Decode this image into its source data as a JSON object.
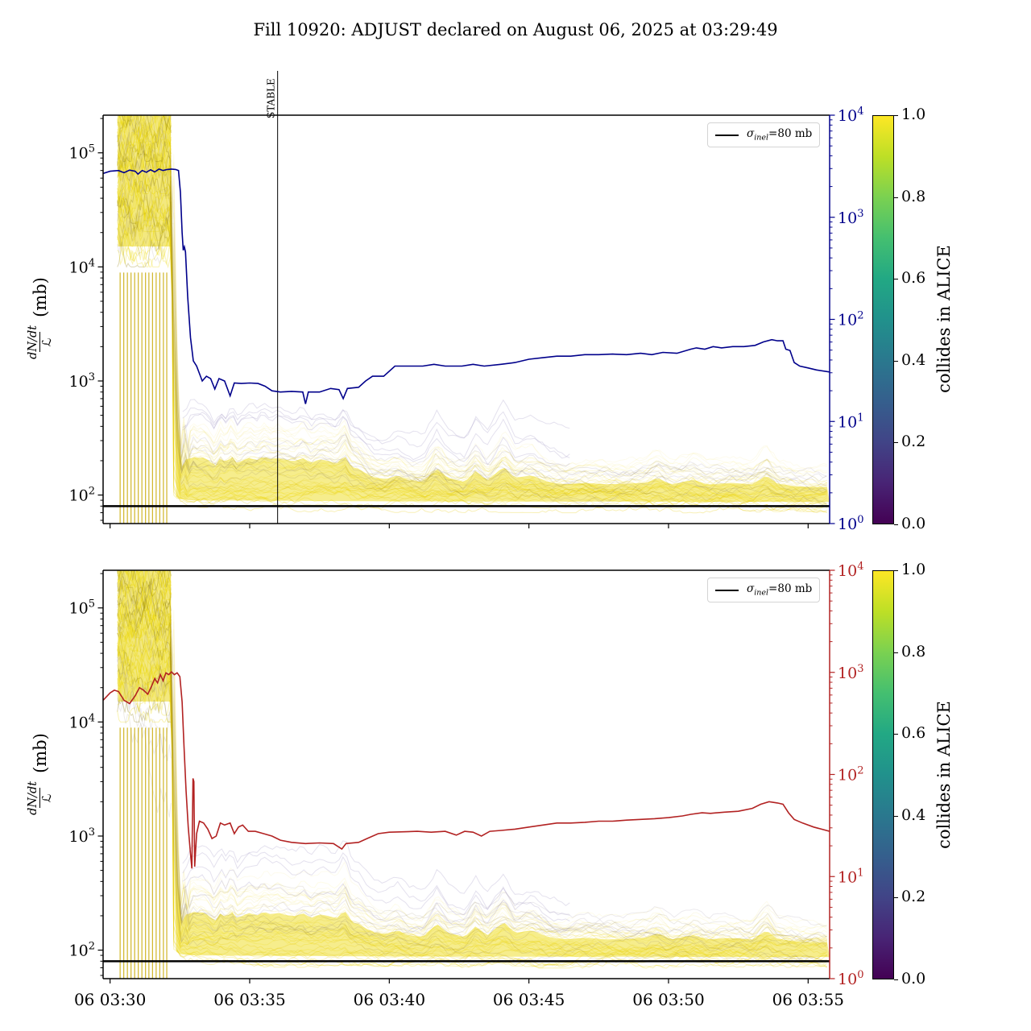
{
  "chart_data": {
    "type": "line",
    "title": "Fill 10920: ADJUST declared on August 06, 2025 at 03:29:49",
    "x": {
      "t_min": -0.25,
      "t_max": 25.77,
      "tick_t": [
        0,
        5,
        10,
        15,
        20,
        25
      ],
      "tick_labels": [
        "06 03:30",
        "06 03:35",
        "06 03:40",
        "06 03:45",
        "06 03:50",
        "06 03:55"
      ]
    },
    "y_left": {
      "scale": "log",
      "log_min": 1.75,
      "log_max": 5.33,
      "tick_exponents": [
        2,
        3,
        4,
        5
      ],
      "label_numerator": "dN/dt",
      "label_denominator": "ℒ",
      "label_unit": "(mb)"
    },
    "y_right": {
      "scale": "log",
      "log_min": 0,
      "log_max": 4,
      "tick_exponents": [
        0,
        1,
        2,
        3,
        4
      ]
    },
    "colorbar": {
      "label": "collides in ALICE",
      "tick_labels": [
        "1.0",
        "0.8",
        "0.6",
        "0.4",
        "0.2",
        "0.0"
      ],
      "colormap": "viridis",
      "stops": [
        "#440154",
        "#482475",
        "#414487",
        "#355f8d",
        "#2a788e",
        "#21918c",
        "#22a884",
        "#44bf70",
        "#7ad151",
        "#bddf26",
        "#fde725"
      ]
    },
    "sigma_reference": {
      "value_mb": 80,
      "legend_sigma": "σ",
      "legend_subscript": "inel",
      "legend_suffix": "=80 mb",
      "line_color": "#000000"
    },
    "stable_marker": {
      "label": "STABLE",
      "t_minutes": 6.0
    },
    "panels": [
      {
        "name": "top",
        "accent_color": "#00008b",
        "has_stable_marker": true,
        "has_x_tick_labels": false,
        "series": {
          "color": "#00008b",
          "points": [
            [
              -0.25,
              66000
            ],
            [
              0,
              69000
            ],
            [
              0.3,
              70000
            ],
            [
              0.5,
              67000
            ],
            [
              0.7,
              70500
            ],
            [
              0.9,
              69000
            ],
            [
              1.0,
              65000
            ],
            [
              1.15,
              70000
            ],
            [
              1.3,
              67500
            ],
            [
              1.45,
              71000
            ],
            [
              1.6,
              68000
            ],
            [
              1.75,
              72000
            ],
            [
              1.9,
              70000
            ],
            [
              2.05,
              71500
            ],
            [
              2.2,
              72000
            ],
            [
              2.35,
              71500
            ],
            [
              2.45,
              70000
            ],
            [
              2.52,
              45000
            ],
            [
              2.58,
              20000
            ],
            [
              2.62,
              14000
            ],
            [
              2.66,
              15000
            ],
            [
              2.7,
              13500
            ],
            [
              2.78,
              5500
            ],
            [
              2.88,
              2400
            ],
            [
              2.98,
              1500
            ],
            [
              3.1,
              1350
            ],
            [
              3.3,
              1000
            ],
            [
              3.45,
              1100
            ],
            [
              3.6,
              1050
            ],
            [
              3.75,
              850
            ],
            [
              3.9,
              1050
            ],
            [
              4.1,
              1000
            ],
            [
              4.3,
              740
            ],
            [
              4.45,
              960
            ],
            [
              4.7,
              950
            ],
            [
              5.0,
              960
            ],
            [
              5.3,
              950
            ],
            [
              5.55,
              900
            ],
            [
              5.8,
              820
            ],
            [
              6.1,
              800
            ],
            [
              6.5,
              810
            ],
            [
              6.9,
              800
            ],
            [
              7.0,
              630
            ],
            [
              7.1,
              800
            ],
            [
              7.5,
              800
            ],
            [
              7.9,
              860
            ],
            [
              8.2,
              840
            ],
            [
              8.35,
              700
            ],
            [
              8.5,
              860
            ],
            [
              8.9,
              880
            ],
            [
              9.15,
              1000
            ],
            [
              9.4,
              1100
            ],
            [
              9.8,
              1100
            ],
            [
              10.2,
              1350
            ],
            [
              10.6,
              1350
            ],
            [
              11.2,
              1350
            ],
            [
              11.6,
              1400
            ],
            [
              12.0,
              1350
            ],
            [
              12.6,
              1350
            ],
            [
              13.0,
              1400
            ],
            [
              13.4,
              1350
            ],
            [
              14.0,
              1400
            ],
            [
              14.5,
              1450
            ],
            [
              15.0,
              1550
            ],
            [
              15.5,
              1600
            ],
            [
              16.0,
              1650
            ],
            [
              16.5,
              1650
            ],
            [
              17.0,
              1700
            ],
            [
              17.5,
              1700
            ],
            [
              18.0,
              1720
            ],
            [
              18.5,
              1700
            ],
            [
              19.0,
              1750
            ],
            [
              19.4,
              1700
            ],
            [
              19.8,
              1780
            ],
            [
              20.3,
              1750
            ],
            [
              20.8,
              1900
            ],
            [
              21.0,
              1950
            ],
            [
              21.3,
              1900
            ],
            [
              21.6,
              2000
            ],
            [
              21.9,
              1950
            ],
            [
              22.3,
              2000
            ],
            [
              22.7,
              2000
            ],
            [
              23.1,
              2050
            ],
            [
              23.4,
              2200
            ],
            [
              23.7,
              2300
            ],
            [
              23.9,
              2250
            ],
            [
              24.1,
              2250
            ],
            [
              24.2,
              1900
            ],
            [
              24.35,
              1850
            ],
            [
              24.5,
              1450
            ],
            [
              24.7,
              1350
            ],
            [
              25.0,
              1300
            ],
            [
              25.3,
              1250
            ],
            [
              25.77,
              1200
            ]
          ]
        }
      },
      {
        "name": "bottom",
        "accent_color": "#b22222",
        "has_stable_marker": false,
        "has_x_tick_labels": true,
        "series": {
          "color": "#b22222",
          "points": [
            [
              -0.25,
              15500
            ],
            [
              0,
              18000
            ],
            [
              0.15,
              19000
            ],
            [
              0.3,
              18500
            ],
            [
              0.5,
              15500
            ],
            [
              0.7,
              14500
            ],
            [
              0.9,
              17000
            ],
            [
              1.05,
              20000
            ],
            [
              1.2,
              19000
            ],
            [
              1.35,
              17500
            ],
            [
              1.5,
              21000
            ],
            [
              1.6,
              24000
            ],
            [
              1.7,
              22000
            ],
            [
              1.8,
              26000
            ],
            [
              1.9,
              23000
            ],
            [
              2.0,
              27000
            ],
            [
              2.1,
              26000
            ],
            [
              2.2,
              27500
            ],
            [
              2.3,
              26000
            ],
            [
              2.4,
              27000
            ],
            [
              2.5,
              25000
            ],
            [
              2.58,
              15000
            ],
            [
              2.65,
              6000
            ],
            [
              2.72,
              2500
            ],
            [
              2.8,
              1200
            ],
            [
              2.88,
              700
            ],
            [
              2.93,
              520
            ],
            [
              2.97,
              3200
            ],
            [
              3.0,
              3000
            ],
            [
              3.03,
              540
            ],
            [
              3.1,
              1050
            ],
            [
              3.2,
              1350
            ],
            [
              3.35,
              1300
            ],
            [
              3.5,
              1150
            ],
            [
              3.65,
              950
            ],
            [
              3.8,
              1000
            ],
            [
              3.95,
              1300
            ],
            [
              4.1,
              1250
            ],
            [
              4.3,
              1300
            ],
            [
              4.45,
              1050
            ],
            [
              4.6,
              1200
            ],
            [
              4.75,
              1250
            ],
            [
              4.95,
              1100
            ],
            [
              5.2,
              1100
            ],
            [
              5.5,
              1050
            ],
            [
              5.8,
              1000
            ],
            [
              6.1,
              920
            ],
            [
              6.5,
              880
            ],
            [
              7.0,
              860
            ],
            [
              7.5,
              870
            ],
            [
              8.0,
              860
            ],
            [
              8.3,
              770
            ],
            [
              8.45,
              860
            ],
            [
              8.9,
              880
            ],
            [
              9.2,
              950
            ],
            [
              9.6,
              1050
            ],
            [
              10.0,
              1080
            ],
            [
              10.5,
              1090
            ],
            [
              11.0,
              1100
            ],
            [
              11.5,
              1080
            ],
            [
              12.0,
              1100
            ],
            [
              12.4,
              1020
            ],
            [
              12.7,
              1100
            ],
            [
              13.0,
              1080
            ],
            [
              13.3,
              1000
            ],
            [
              13.6,
              1100
            ],
            [
              14.0,
              1120
            ],
            [
              14.5,
              1150
            ],
            [
              15.0,
              1200
            ],
            [
              15.5,
              1250
            ],
            [
              16.0,
              1300
            ],
            [
              16.5,
              1300
            ],
            [
              17.0,
              1320
            ],
            [
              17.5,
              1350
            ],
            [
              18.0,
              1350
            ],
            [
              18.5,
              1380
            ],
            [
              19.0,
              1400
            ],
            [
              19.5,
              1420
            ],
            [
              20.0,
              1450
            ],
            [
              20.5,
              1500
            ],
            [
              20.8,
              1550
            ],
            [
              21.2,
              1600
            ],
            [
              21.5,
              1580
            ],
            [
              22.0,
              1620
            ],
            [
              22.5,
              1650
            ],
            [
              23.0,
              1750
            ],
            [
              23.3,
              1900
            ],
            [
              23.6,
              2000
            ],
            [
              23.9,
              1950
            ],
            [
              24.1,
              1900
            ],
            [
              24.3,
              1600
            ],
            [
              24.5,
              1400
            ],
            [
              24.8,
              1300
            ],
            [
              25.2,
              1200
            ],
            [
              25.77,
              1100
            ]
          ]
        }
      }
    ],
    "bundle": {
      "description": "per-bunch dN/dt over luminosity traces, colored by collides-in-ALICE fraction",
      "color_bright": "#e8d000",
      "color_mid": "#c8a902",
      "color_dark": "#4a3a10",
      "color_dark2": "#45305a",
      "color_faint_purple": "#a79bc8",
      "scan_block": {
        "t_start": 0.28,
        "t_end": 2.18,
        "v_top_mb": 220000,
        "v_bottom_mb": 12000
      },
      "scan_lines_t": [
        0.36,
        0.49,
        0.62,
        0.75,
        0.88,
        1.01,
        1.14,
        1.27,
        1.39,
        1.52,
        1.65,
        1.78,
        1.91,
        2.03
      ],
      "band_upper_mb": [
        [
          2.28,
          100000
        ],
        [
          2.38,
          3500
        ],
        [
          2.5,
          280
        ],
        [
          2.6,
          320
        ],
        [
          2.68,
          760
        ],
        [
          2.78,
          210
        ],
        [
          2.9,
          480
        ],
        [
          3.1,
          420
        ],
        [
          3.3,
          440
        ],
        [
          3.55,
          390
        ],
        [
          3.75,
          310
        ],
        [
          3.95,
          430
        ],
        [
          4.15,
          360
        ],
        [
          4.35,
          460
        ],
        [
          4.55,
          350
        ],
        [
          4.75,
          390
        ],
        [
          5.0,
          430
        ],
        [
          5.25,
          390
        ],
        [
          5.5,
          450
        ],
        [
          5.75,
          410
        ],
        [
          6.0,
          430
        ],
        [
          6.3,
          400
        ],
        [
          6.6,
          380
        ],
        [
          6.9,
          430
        ],
        [
          7.2,
          360
        ],
        [
          7.5,
          410
        ],
        [
          7.8,
          390
        ],
        [
          8.1,
          350
        ],
        [
          8.4,
          470
        ],
        [
          8.65,
          310
        ],
        [
          8.9,
          290
        ],
        [
          9.2,
          240
        ],
        [
          9.5,
          210
        ],
        [
          9.9,
          200
        ],
        [
          10.3,
          230
        ],
        [
          10.7,
          190
        ],
        [
          11.2,
          180
        ],
        [
          11.7,
          290
        ],
        [
          12.1,
          210
        ],
        [
          12.7,
          180
        ],
        [
          13.1,
          270
        ],
        [
          13.5,
          190
        ],
        [
          14.1,
          310
        ],
        [
          14.5,
          210
        ],
        [
          15.1,
          230
        ],
        [
          15.7,
          180
        ],
        [
          16.3,
          165
        ],
        [
          17.0,
          175
        ],
        [
          17.8,
          165
        ],
        [
          18.6,
          170
        ],
        [
          19.2,
          175
        ],
        [
          19.6,
          210
        ],
        [
          20.1,
          165
        ],
        [
          20.9,
          195
        ],
        [
          21.4,
          165
        ],
        [
          22.3,
          175
        ],
        [
          23.0,
          165
        ],
        [
          23.5,
          230
        ],
        [
          23.9,
          170
        ],
        [
          24.5,
          155
        ],
        [
          25.2,
          150
        ],
        [
          25.77,
          150
        ]
      ],
      "band_lower_mb": [
        [
          2.28,
          100
        ],
        [
          2.5,
          92
        ],
        [
          3.0,
          90
        ],
        [
          10.0,
          88
        ],
        [
          25.77,
          87
        ]
      ]
    }
  }
}
